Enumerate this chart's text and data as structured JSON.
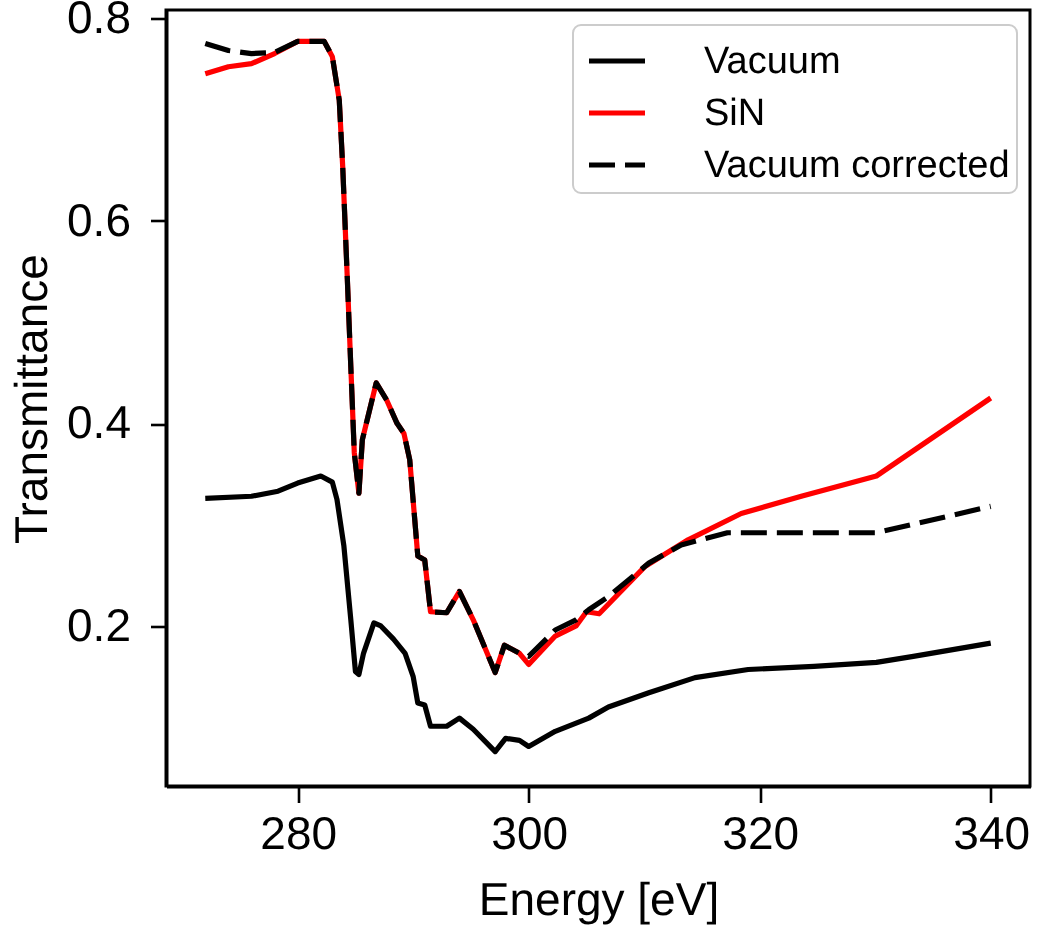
{
  "chart_data": {
    "type": "line",
    "xlabel": "Energy [eV]",
    "ylabel": "Transmittance",
    "xlim": [
      268.6,
      343.4
    ],
    "ylim": [
      0.042,
      0.808
    ],
    "xticks": [
      280,
      300,
      320,
      340
    ],
    "yticks": [
      0.2,
      0.4,
      0.6,
      0.8
    ],
    "grid": false,
    "legend": "top right",
    "series": [
      {
        "name": "Vacuum",
        "color": "#000000",
        "line_style": "solid",
        "x": [
          272,
          276,
          278.3,
          280,
          282,
          283,
          283.4,
          284,
          284.6,
          285,
          285.3,
          285.7,
          286.6,
          287.2,
          288.3,
          289.3,
          290,
          290.4,
          291,
          291.5,
          292.9,
          294,
          295.2,
          297.1,
          298,
          299.2,
          300,
          302.3,
          305.2,
          306.9,
          310.4,
          314.4,
          319,
          324.7,
          330.1,
          333.3,
          340
        ],
        "values": [
          0.326,
          0.328,
          0.333,
          0.341,
          0.348,
          0.342,
          0.325,
          0.279,
          0.206,
          0.155,
          0.152,
          0.173,
          0.203,
          0.2,
          0.187,
          0.173,
          0.15,
          0.124,
          0.122,
          0.101,
          0.101,
          0.109,
          0.098,
          0.076,
          0.089,
          0.087,
          0.081,
          0.096,
          0.109,
          0.12,
          0.134,
          0.149,
          0.157,
          0.16,
          0.164,
          0.17,
          0.183
        ]
      },
      {
        "name": "SiN",
        "color": "#ff0000",
        "line_style": "solid",
        "x": [
          272,
          274,
          276,
          278,
          280,
          282.3,
          283,
          283.6,
          283.9,
          284.3,
          284.6,
          284.9,
          285.3,
          285.6,
          286.8,
          287.7,
          288.6,
          289.2,
          289.7,
          290.4,
          291,
          291.5,
          292.9,
          294,
          295.2,
          297.1,
          297.9,
          299.2,
          300,
          302.3,
          304.1,
          305,
          306.1,
          310.1,
          313.8,
          318.4,
          323.6,
          330.1,
          340
        ],
        "values": [
          0.745,
          0.752,
          0.755,
          0.765,
          0.777,
          0.777,
          0.762,
          0.719,
          0.653,
          0.542,
          0.456,
          0.371,
          0.331,
          0.384,
          0.44,
          0.423,
          0.4,
          0.39,
          0.364,
          0.269,
          0.265,
          0.214,
          0.213,
          0.234,
          0.206,
          0.154,
          0.181,
          0.173,
          0.162,
          0.19,
          0.2,
          0.214,
          0.212,
          0.259,
          0.285,
          0.311,
          0.328,
          0.348,
          0.425
        ]
      },
      {
        "name": "Vacuum corrected",
        "color": "#000000",
        "line_style": "dashed",
        "x": [
          272,
          274,
          276,
          278,
          280,
          282.3,
          283,
          283.6,
          283.9,
          284.3,
          284.6,
          284.9,
          285.3,
          285.6,
          286.8,
          287.7,
          288.6,
          289.2,
          289.7,
          290.4,
          291,
          291.5,
          292.9,
          294,
          295.2,
          297.1,
          297.9,
          299.2,
          300,
          302.3,
          304.1,
          305.2,
          306.9,
          310.4,
          313.2,
          317.2,
          319.5,
          330.1,
          340
        ],
        "values": [
          0.775,
          0.768,
          0.765,
          0.766,
          0.777,
          0.777,
          0.762,
          0.719,
          0.653,
          0.542,
          0.456,
          0.371,
          0.331,
          0.384,
          0.44,
          0.423,
          0.4,
          0.39,
          0.364,
          0.269,
          0.265,
          0.214,
          0.213,
          0.234,
          0.206,
          0.154,
          0.181,
          0.173,
          0.17,
          0.196,
          0.206,
          0.216,
          0.229,
          0.262,
          0.28,
          0.292,
          0.292,
          0.292,
          0.318
        ]
      }
    ]
  }
}
